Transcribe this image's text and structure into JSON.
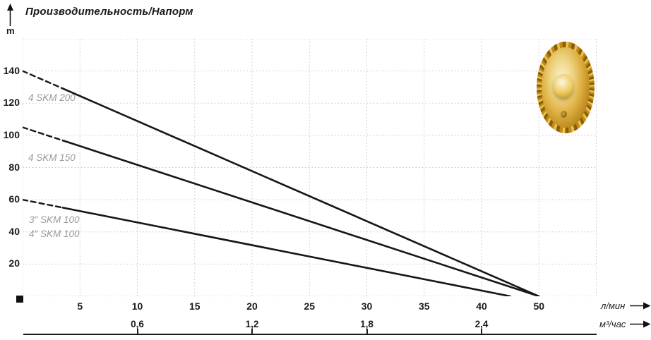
{
  "title": "Производительность/Напорм",
  "y_axis_unit": "m",
  "x_axis_unit_1": "л/мин",
  "x_axis_unit_2": "м³/час",
  "series_labels": [
    "4 SKM 200",
    "4 SKM 150",
    "3″ SKM 100",
    "4″ SKM 100"
  ],
  "icons": {
    "y_axis_arrow": "arrow-up",
    "x_axis_arrows": "arrow-right",
    "origin_marker": "black-square",
    "impeller_image": "brass-pump-impeller-photo"
  },
  "colors": {
    "curve": "#161616",
    "grid": "#c7c7c7",
    "tick_text": "#1b1b1b",
    "series_label_text": "#9a9a9a",
    "impeller_gold": "#d9a520",
    "background": "#ffffff"
  },
  "chart_data": {
    "type": "line",
    "title": "Производительность/Напорм",
    "ylabel": "m",
    "xlabel_primary": "л/мин",
    "xlabel_secondary": "м³/час",
    "ylim": [
      0,
      160
    ],
    "xlim": [
      0,
      52.5
    ],
    "grid": "dotted",
    "y_ticks": [
      20,
      40,
      60,
      80,
      100,
      120,
      140
    ],
    "x_ticks_lmin": [
      "5",
      "10",
      "15",
      "20",
      "25",
      "30",
      "35",
      "40",
      "50"
    ],
    "x_ticks_m3h": [
      "0,6",
      "1,2",
      "1,8",
      "2,4"
    ],
    "x_ticks_m3h_slots": [
      2,
      4,
      6,
      8
    ],
    "series": [
      {
        "name": "4 SKM 200",
        "x": [
          0,
          50
        ],
        "y": [
          140,
          0
        ],
        "dash_until_x": 3.5,
        "color": "#161616"
      },
      {
        "name": "4 SKM 150",
        "x": [
          0,
          50
        ],
        "y": [
          105,
          0
        ],
        "dash_until_x": 3.5,
        "color": "#161616"
      },
      {
        "name": "3″/4″ SKM 100",
        "x": [
          0,
          45
        ],
        "y": [
          60,
          0
        ],
        "dash_until_x": 3.5,
        "color": "#161616"
      }
    ],
    "legend_position": "labels-inline-left",
    "axis_note": "x-scale compressed after 40: label 50 sits one grid slot after 40"
  }
}
